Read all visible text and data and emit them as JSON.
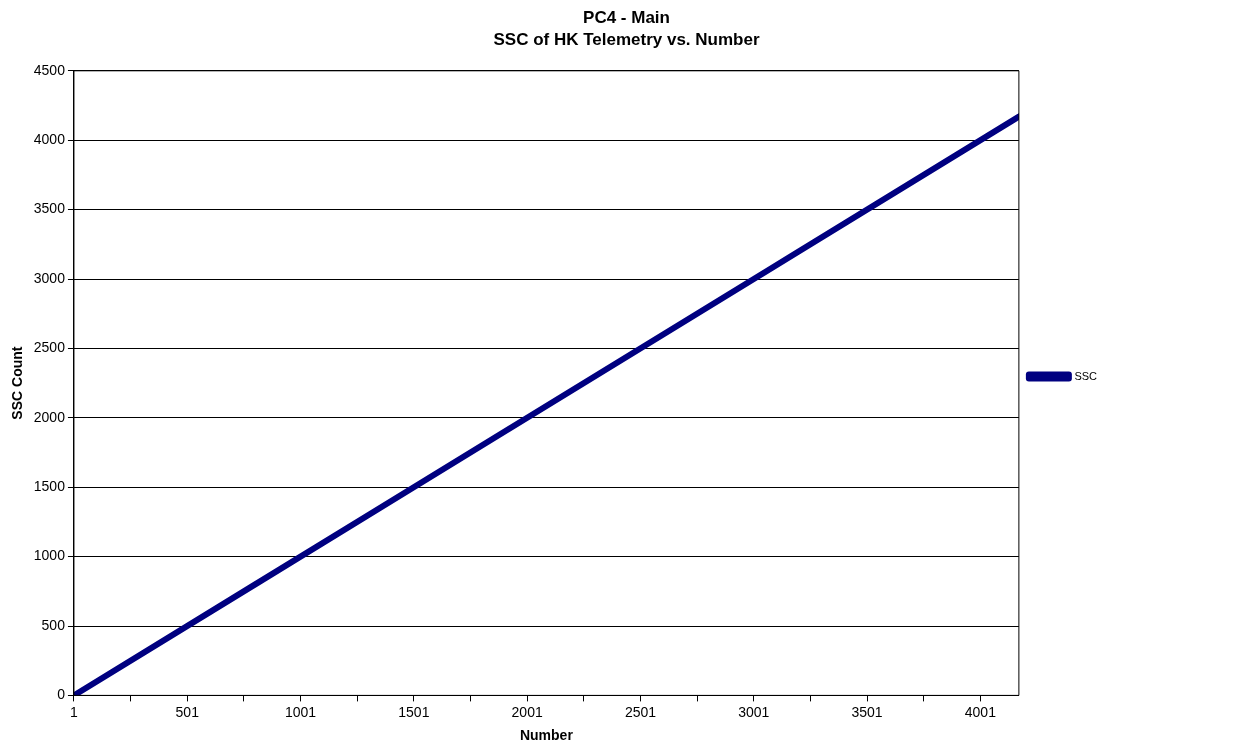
{
  "chart_data": {
    "type": "line",
    "title": "PC4 - Main",
    "subtitle": "SSC of HK Telemetry vs. Number",
    "xlabel": "Number",
    "ylabel": "SSC Count",
    "xlim": [
      1,
      4171
    ],
    "xticks": [
      1,
      {
        "value": 251,
        "label": null
      },
      501,
      {
        "value": 751,
        "label": null
      },
      1001,
      {
        "value": 1251,
        "label": null
      },
      1501,
      {
        "value": 1751,
        "label": null
      },
      2001,
      {
        "value": 2251,
        "label": null
      },
      2501,
      {
        "value": 2751,
        "label": null
      },
      3001,
      {
        "value": 3251,
        "label": null
      },
      3501,
      {
        "value": 3751,
        "label": null
      },
      4001
    ],
    "ylim": [
      0,
      4500
    ],
    "yticks": [
      0,
      500,
      1000,
      1500,
      2000,
      2500,
      3000,
      3500,
      4000,
      4500
    ],
    "series": [
      {
        "name": "SSC",
        "color": "#000080",
        "x": [
          1,
          4171
        ],
        "values": [
          0,
          4170
        ]
      }
    ],
    "grid": "y",
    "legend": "right",
    "marker": "diamond",
    "line_style": "solid"
  }
}
